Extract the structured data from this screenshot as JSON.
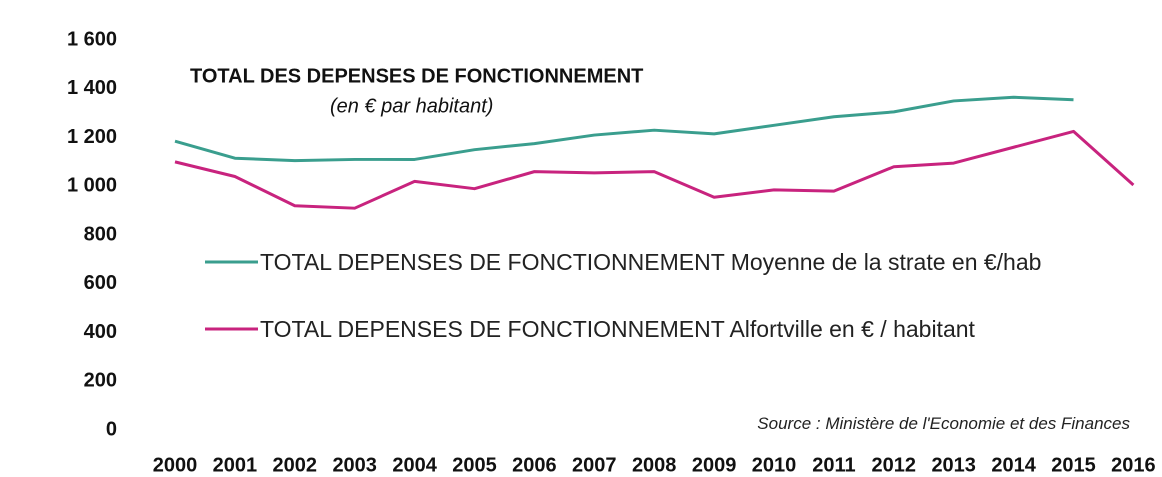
{
  "chart_data": {
    "type": "line",
    "title": "TOTAL DES DEPENSES DE FONCTIONNEMENT",
    "subtitle": "(en € par habitant)",
    "source": "Source : Ministère de l'Economie et des Finances",
    "categories": [
      "2000",
      "2001",
      "2002",
      "2003",
      "2004",
      "2005",
      "2006",
      "2007",
      "2008",
      "2009",
      "2010",
      "2011",
      "2012",
      "2013",
      "2014",
      "2015",
      "2016"
    ],
    "series": [
      {
        "name": "TOTAL DEPENSES DE FONCTIONNEMENT Moyenne de la strate en €/hab",
        "color": "#3a9e8e",
        "values": [
          1185,
          1115,
          1105,
          1110,
          1110,
          1150,
          1175,
          1210,
          1230,
          1215,
          1250,
          1285,
          1305,
          1350,
          1365,
          1355,
          null
        ]
      },
      {
        "name": "TOTAL DEPENSES DE FONCTIONNEMENT Alfortville en € / habitant",
        "color": "#c8237e",
        "values": [
          1100,
          1040,
          920,
          910,
          1020,
          990,
          1060,
          1055,
          1060,
          955,
          985,
          980,
          1080,
          1095,
          1160,
          1225,
          1005
        ]
      }
    ],
    "ylim": [
      0,
      1600
    ],
    "yticks": [
      0,
      200,
      400,
      600,
      800,
      {
        "value": 1000,
        "label": "1 000"
      },
      {
        "value": 1200,
        "label": "1 200"
      },
      {
        "value": 1400,
        "label": "1 400"
      },
      {
        "value": 1600,
        "label": "1 600"
      }
    ],
    "grid": false
  }
}
